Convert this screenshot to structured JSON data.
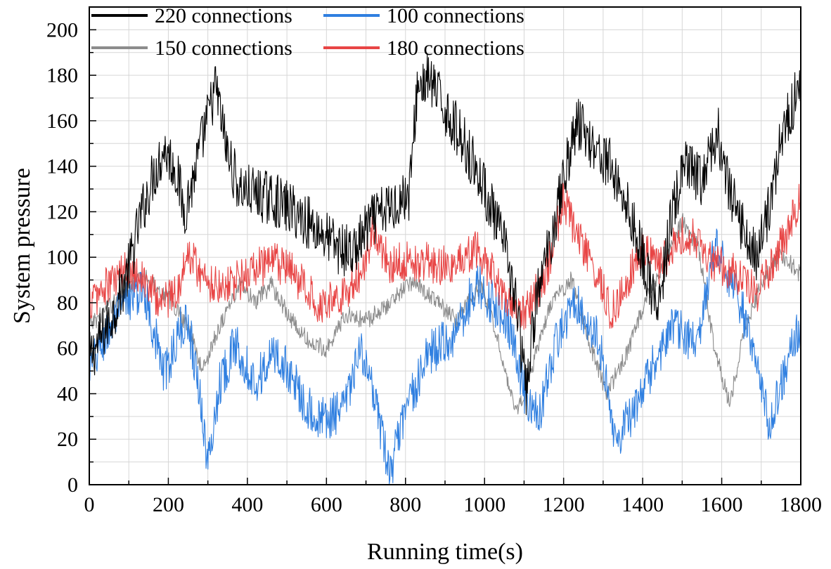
{
  "chart_data": {
    "type": "line",
    "title": "",
    "xlabel": "Running time(s)",
    "ylabel": "System pressure",
    "xlim": [
      0,
      1800
    ],
    "ylim": [
      0,
      210
    ],
    "xticks": [
      0,
      200,
      400,
      600,
      800,
      1000,
      1200,
      1400,
      1600,
      1800
    ],
    "yticks": [
      0,
      20,
      40,
      60,
      80,
      100,
      120,
      140,
      160,
      180,
      200
    ],
    "grid": true,
    "legend_position": "top",
    "series": [
      {
        "name": "220 connections",
        "color": "#000000",
        "noise": 12,
        "points": [
          [
            0,
            55
          ],
          [
            60,
            75
          ],
          [
            100,
            95
          ],
          [
            130,
            118
          ],
          [
            160,
            135
          ],
          [
            190,
            148
          ],
          [
            220,
            138
          ],
          [
            240,
            120
          ],
          [
            260,
            132
          ],
          [
            290,
            155
          ],
          [
            320,
            175
          ],
          [
            350,
            145
          ],
          [
            380,
            130
          ],
          [
            420,
            128
          ],
          [
            470,
            125
          ],
          [
            520,
            120
          ],
          [
            580,
            112
          ],
          [
            630,
            104
          ],
          [
            670,
            102
          ],
          [
            710,
            115
          ],
          [
            760,
            122
          ],
          [
            810,
            128
          ],
          [
            830,
            175
          ],
          [
            860,
            178
          ],
          [
            900,
            165
          ],
          [
            950,
            150
          ],
          [
            1000,
            130
          ],
          [
            1050,
            105
          ],
          [
            1080,
            80
          ],
          [
            1105,
            40
          ],
          [
            1130,
            80
          ],
          [
            1170,
            110
          ],
          [
            1200,
            135
          ],
          [
            1235,
            160
          ],
          [
            1280,
            148
          ],
          [
            1320,
            140
          ],
          [
            1370,
            118
          ],
          [
            1400,
            100
          ],
          [
            1440,
            75
          ],
          [
            1470,
            115
          ],
          [
            1505,
            140
          ],
          [
            1550,
            133
          ],
          [
            1590,
            155
          ],
          [
            1620,
            128
          ],
          [
            1660,
            110
          ],
          [
            1690,
            100
          ],
          [
            1720,
            122
          ],
          [
            1750,
            152
          ],
          [
            1800,
            178
          ]
        ]
      },
      {
        "name": "100 connections",
        "color": "#2f7fe0",
        "noise": 10,
        "points": [
          [
            0,
            50
          ],
          [
            50,
            68
          ],
          [
            100,
            82
          ],
          [
            140,
            85
          ],
          [
            190,
            48
          ],
          [
            230,
            68
          ],
          [
            250,
            72
          ],
          [
            280,
            40
          ],
          [
            300,
            8
          ],
          [
            330,
            45
          ],
          [
            370,
            62
          ],
          [
            420,
            45
          ],
          [
            470,
            58
          ],
          [
            510,
            48
          ],
          [
            550,
            35
          ],
          [
            580,
            28
          ],
          [
            640,
            32
          ],
          [
            690,
            60
          ],
          [
            740,
            22
          ],
          [
            760,
            5
          ],
          [
            800,
            32
          ],
          [
            860,
            58
          ],
          [
            920,
            65
          ],
          [
            980,
            88
          ],
          [
            1020,
            80
          ],
          [
            1060,
            72
          ],
          [
            1100,
            40
          ],
          [
            1140,
            30
          ],
          [
            1180,
            62
          ],
          [
            1230,
            82
          ],
          [
            1290,
            62
          ],
          [
            1330,
            20
          ],
          [
            1380,
            32
          ],
          [
            1420,
            50
          ],
          [
            1480,
            70
          ],
          [
            1540,
            60
          ],
          [
            1580,
            105
          ],
          [
            1620,
            92
          ],
          [
            1660,
            72
          ],
          [
            1720,
            28
          ],
          [
            1760,
            50
          ],
          [
            1800,
            70
          ]
        ]
      },
      {
        "name": "150 connections",
        "color": "#8c8c8c",
        "noise": 4,
        "points": [
          [
            0,
            70
          ],
          [
            50,
            78
          ],
          [
            100,
            88
          ],
          [
            140,
            92
          ],
          [
            200,
            82
          ],
          [
            250,
            70
          ],
          [
            285,
            50
          ],
          [
            330,
            70
          ],
          [
            380,
            88
          ],
          [
            420,
            80
          ],
          [
            460,
            88
          ],
          [
            520,
            70
          ],
          [
            560,
            62
          ],
          [
            600,
            60
          ],
          [
            650,
            75
          ],
          [
            700,
            72
          ],
          [
            760,
            80
          ],
          [
            820,
            90
          ],
          [
            880,
            80
          ],
          [
            930,
            72
          ],
          [
            990,
            88
          ],
          [
            1040,
            60
          ],
          [
            1080,
            30
          ],
          [
            1120,
            52
          ],
          [
            1170,
            80
          ],
          [
            1220,
            90
          ],
          [
            1270,
            60
          ],
          [
            1310,
            40
          ],
          [
            1360,
            58
          ],
          [
            1410,
            82
          ],
          [
            1460,
            100
          ],
          [
            1500,
            116
          ],
          [
            1540,
            105
          ],
          [
            1580,
            62
          ],
          [
            1620,
            35
          ],
          [
            1660,
            70
          ],
          [
            1700,
            88
          ],
          [
            1750,
            102
          ],
          [
            1800,
            92
          ]
        ]
      },
      {
        "name": "180 connections",
        "color": "#e84545",
        "noise": 9,
        "points": [
          [
            0,
            80
          ],
          [
            50,
            88
          ],
          [
            100,
            95
          ],
          [
            130,
            92
          ],
          [
            180,
            80
          ],
          [
            220,
            85
          ],
          [
            255,
            102
          ],
          [
            290,
            90
          ],
          [
            330,
            88
          ],
          [
            380,
            90
          ],
          [
            420,
            95
          ],
          [
            470,
            98
          ],
          [
            520,
            92
          ],
          [
            580,
            80
          ],
          [
            630,
            82
          ],
          [
            680,
            90
          ],
          [
            720,
            112
          ],
          [
            760,
            97
          ],
          [
            800,
            98
          ],
          [
            860,
            98
          ],
          [
            920,
            95
          ],
          [
            980,
            103
          ],
          [
            1030,
            90
          ],
          [
            1080,
            72
          ],
          [
            1120,
            80
          ],
          [
            1160,
            95
          ],
          [
            1200,
            125
          ],
          [
            1240,
            108
          ],
          [
            1290,
            90
          ],
          [
            1320,
            75
          ],
          [
            1360,
            90
          ],
          [
            1400,
            105
          ],
          [
            1440,
            95
          ],
          [
            1500,
            110
          ],
          [
            1540,
            108
          ],
          [
            1580,
            98
          ],
          [
            1640,
            92
          ],
          [
            1690,
            85
          ],
          [
            1730,
            98
          ],
          [
            1770,
            112
          ],
          [
            1800,
            128
          ]
        ]
      }
    ]
  }
}
